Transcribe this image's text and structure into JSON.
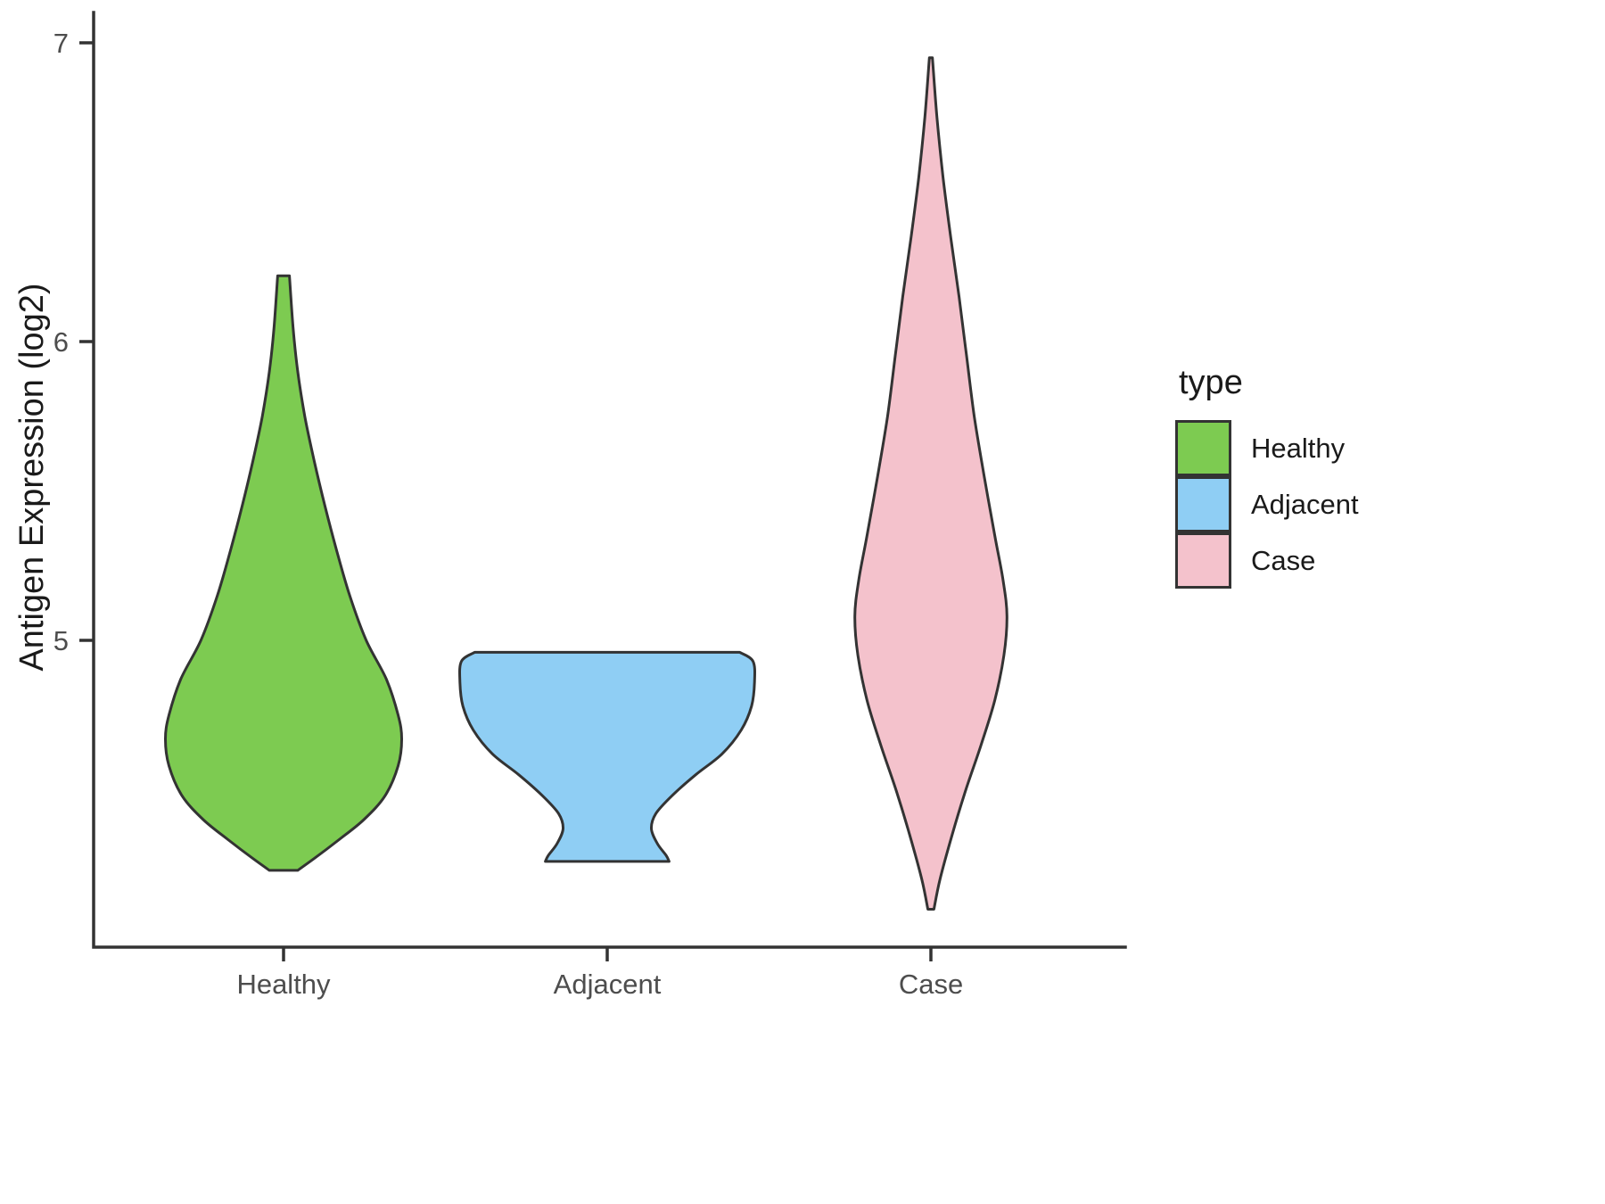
{
  "chart_data": {
    "type": "violin",
    "title": "",
    "xlabel": "",
    "ylabel": "Antigen Expression (log2)",
    "categories": [
      "Healthy",
      "Adjacent",
      "Case"
    ],
    "y_ticks": [
      5,
      6,
      7
    ],
    "ylim": [
      3.95,
      7.1
    ],
    "grid": "off",
    "legend": {
      "title": "type",
      "position": "right",
      "entries": [
        {
          "label": "Healthy",
          "color": "#7DCB51"
        },
        {
          "label": "Adjacent",
          "color": "#8FCEF4"
        },
        {
          "label": "Case",
          "color": "#F4C2CC"
        }
      ]
    },
    "style": {
      "outline_color": "#333333",
      "axis_color": "#333333",
      "tick_label_color": "#4d4d4d",
      "axis_title_color": "#1a1a1a",
      "background": "#ffffff"
    },
    "violins": [
      {
        "category": "Healthy",
        "color": "#7DCB51",
        "range": [
          4.23,
          6.22
        ],
        "peak_value": 4.67,
        "max_halfwidth_frac": 0.365,
        "profile": [
          [
            6.22,
            0.05
          ],
          [
            6.05,
            0.08
          ],
          [
            5.9,
            0.12
          ],
          [
            5.75,
            0.18
          ],
          [
            5.6,
            0.26
          ],
          [
            5.45,
            0.35
          ],
          [
            5.3,
            0.45
          ],
          [
            5.15,
            0.56
          ],
          [
            5.0,
            0.7
          ],
          [
            4.87,
            0.87
          ],
          [
            4.75,
            0.97
          ],
          [
            4.67,
            1.0
          ],
          [
            4.58,
            0.97
          ],
          [
            4.48,
            0.86
          ],
          [
            4.4,
            0.68
          ],
          [
            4.33,
            0.46
          ],
          [
            4.27,
            0.26
          ],
          [
            4.23,
            0.12
          ]
        ]
      },
      {
        "category": "Adjacent",
        "color": "#8FCEF4",
        "range": [
          4.26,
          4.96
        ],
        "peak_value": 4.9,
        "max_halfwidth_frac": 0.455,
        "profile": [
          [
            4.96,
            0.9
          ],
          [
            4.93,
            0.99
          ],
          [
            4.86,
            1.0
          ],
          [
            4.78,
            0.98
          ],
          [
            4.7,
            0.91
          ],
          [
            4.62,
            0.78
          ],
          [
            4.55,
            0.6
          ],
          [
            4.48,
            0.44
          ],
          [
            4.42,
            0.33
          ],
          [
            4.37,
            0.3
          ],
          [
            4.32,
            0.34
          ],
          [
            4.28,
            0.4
          ],
          [
            4.26,
            0.42
          ]
        ]
      },
      {
        "category": "Case",
        "color": "#F4C2CC",
        "range": [
          4.1,
          6.95
        ],
        "peak_value": 5.08,
        "max_halfwidth_frac": 0.235,
        "profile": [
          [
            6.95,
            0.02
          ],
          [
            6.75,
            0.08
          ],
          [
            6.55,
            0.16
          ],
          [
            6.35,
            0.26
          ],
          [
            6.15,
            0.37
          ],
          [
            5.95,
            0.47
          ],
          [
            5.75,
            0.57
          ],
          [
            5.55,
            0.7
          ],
          [
            5.35,
            0.84
          ],
          [
            5.2,
            0.95
          ],
          [
            5.08,
            1.0
          ],
          [
            4.95,
            0.96
          ],
          [
            4.8,
            0.84
          ],
          [
            4.65,
            0.66
          ],
          [
            4.5,
            0.46
          ],
          [
            4.35,
            0.28
          ],
          [
            4.2,
            0.12
          ],
          [
            4.1,
            0.04
          ]
        ]
      }
    ]
  }
}
